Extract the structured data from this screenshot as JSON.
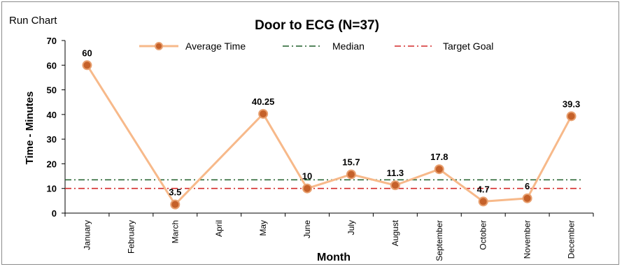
{
  "corner_label": "Run Chart",
  "colors": {
    "series_line": "#f7b98a",
    "marker_fill": "#c5612a",
    "marker_stroke": "#e8a070",
    "median": "#1e5e28",
    "target": "#d42a2a",
    "axis": "#000000"
  },
  "chart_data": {
    "type": "line",
    "title": "Door to ECG (N=37)",
    "xlabel": "Month",
    "ylabel": "Time - Minutes",
    "ylim": [
      0,
      70
    ],
    "yticks": [
      0,
      10,
      20,
      30,
      40,
      50,
      60,
      70
    ],
    "categories": [
      "January",
      "February",
      "March",
      "April",
      "May",
      "June",
      "July",
      "August",
      "September",
      "October",
      "November",
      "December"
    ],
    "series": [
      {
        "name": "Average Time",
        "values": [
          60,
          null,
          3.5,
          null,
          40.25,
          10,
          15.7,
          11.3,
          17.8,
          4.7,
          6,
          39.3
        ],
        "labels": [
          "60",
          null,
          "3.5",
          null,
          "40.25",
          "10",
          "15.7",
          "11.3",
          "17.8",
          "4.7",
          "6",
          "39.3"
        ]
      }
    ],
    "reference_lines": [
      {
        "name": "Median",
        "value": 13.5,
        "style": "dash-dot",
        "color_key": "median"
      },
      {
        "name": "Target Goal",
        "value": 10,
        "style": "dash-dot",
        "color_key": "target"
      }
    ],
    "legend_position": "top"
  }
}
